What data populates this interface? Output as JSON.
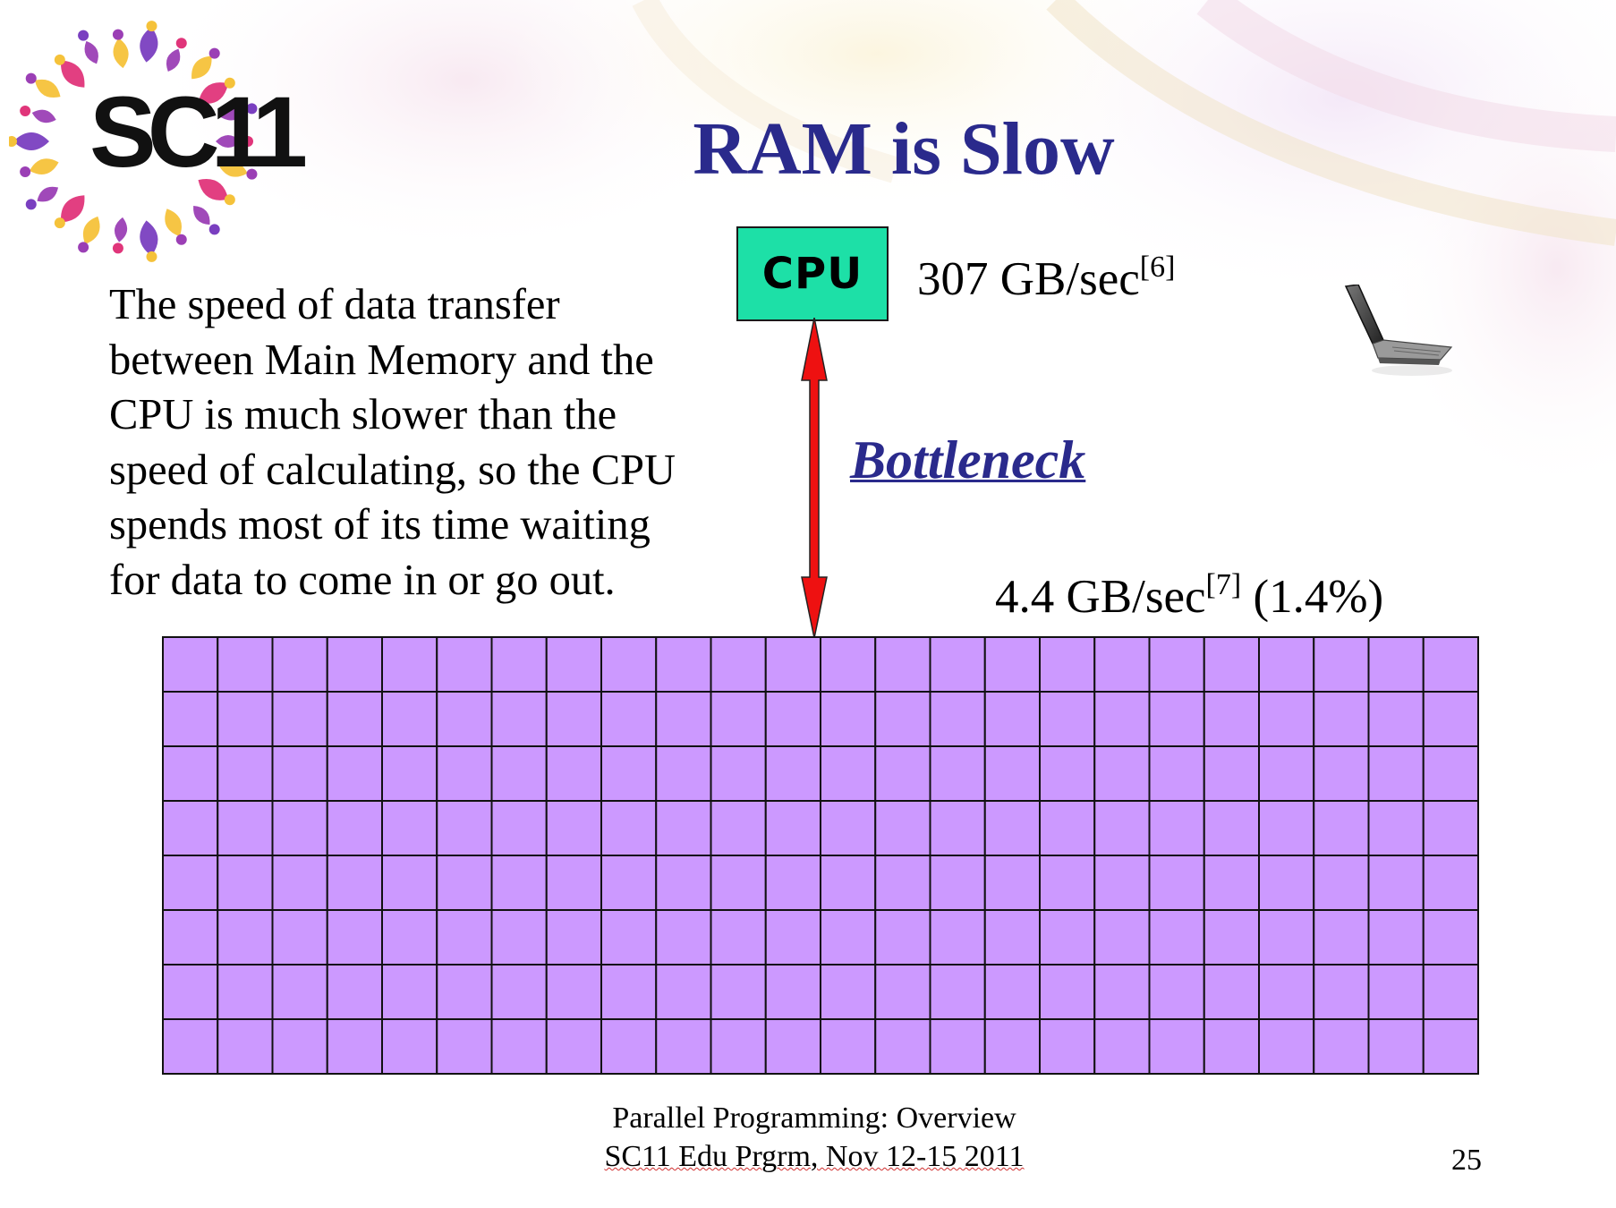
{
  "slide": {
    "title": "RAM is Slow",
    "logo_text": "SC11",
    "body_text": "The speed of data transfer\nbetween Main Memory and the\nCPU is much slower than the\nspeed of calculating, so the CPU\nspends most of its time waiting\nfor data to come in or go out.",
    "footer_line1": "Parallel Programming: Overview",
    "footer_line2": "SC11 Edu Prgrm, Nov 12-15 2011",
    "page_number": "25"
  },
  "diagram": {
    "cpu_label": "CPU",
    "cpu_speed": "307 GB/sec",
    "cpu_speed_ref": "[6]",
    "bottleneck_label": "Bottleneck",
    "ram_speed": "4.4 GB/sec",
    "ram_speed_ref": "[7]",
    "ram_speed_pct": " (1.4%)",
    "ram_grid": {
      "rows": 8,
      "cols": 24
    }
  },
  "colors": {
    "title": "#2a2a8c",
    "cpu_fill": "#1de0a7",
    "ram_cell": "#cc99ff",
    "arrow": "#ee1111",
    "link": "#2a2a8c"
  },
  "icons": [
    "sc11-logo-icon",
    "laptop-icon"
  ]
}
